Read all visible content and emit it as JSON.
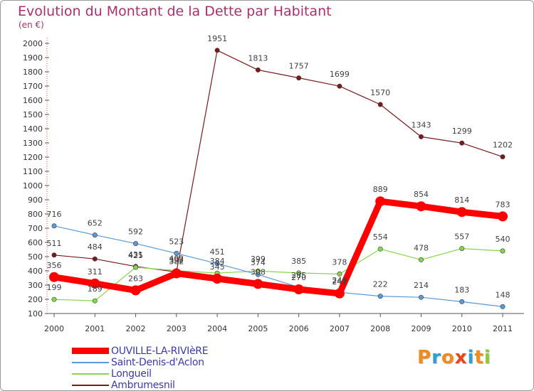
{
  "title": "Evolution du Montant de la Dette par Habitant",
  "subtitle": "(en €)",
  "logo": {
    "text": "Proxiti",
    "colors": [
      "#f28a1c",
      "#2aa3d4",
      "#f28a1c",
      "#e8461d",
      "#2aa3d4",
      "#f28a1c",
      "#8dc63f"
    ]
  },
  "chart_data": {
    "type": "line",
    "categories": [
      "2000",
      "2001",
      "2002",
      "2003",
      "2004",
      "2005",
      "2006",
      "2007",
      "2008",
      "2009",
      "2010",
      "2011"
    ],
    "ylim": [
      100,
      2000
    ],
    "yticks": [
      100,
      200,
      300,
      400,
      500,
      600,
      700,
      800,
      900,
      1000,
      1100,
      1200,
      1300,
      1400,
      1500,
      1600,
      1700,
      1800,
      1900,
      2000
    ],
    "grid": false,
    "legend_position": "bottom-left",
    "series": [
      {
        "name": "Ambrumesnil",
        "color": "#7a1a1e",
        "values": [
          511,
          484,
          431,
          392,
          1951,
          1813,
          1757,
          1699,
          1570,
          1343,
          1299,
          1202
        ]
      },
      {
        "name": "Longueil",
        "color": "#86d64c",
        "values": [
          199,
          189,
          425,
          402,
          384,
          399,
          385,
          378,
          554,
          478,
          557,
          540
        ]
      },
      {
        "name": "Saint-Denis-d'Aclon",
        "color": "#5a9ad6",
        "values": [
          716,
          652,
          592,
          523,
          451,
          374,
          285,
          249,
          222,
          214,
          183,
          148
        ]
      },
      {
        "name": "OUVILLE-LA-RIVIèRE",
        "color": "#ff0000",
        "values": [
          356,
          311,
          263,
          382,
          345,
          308,
          270,
          241,
          889,
          854,
          814,
          783
        ]
      }
    ]
  }
}
